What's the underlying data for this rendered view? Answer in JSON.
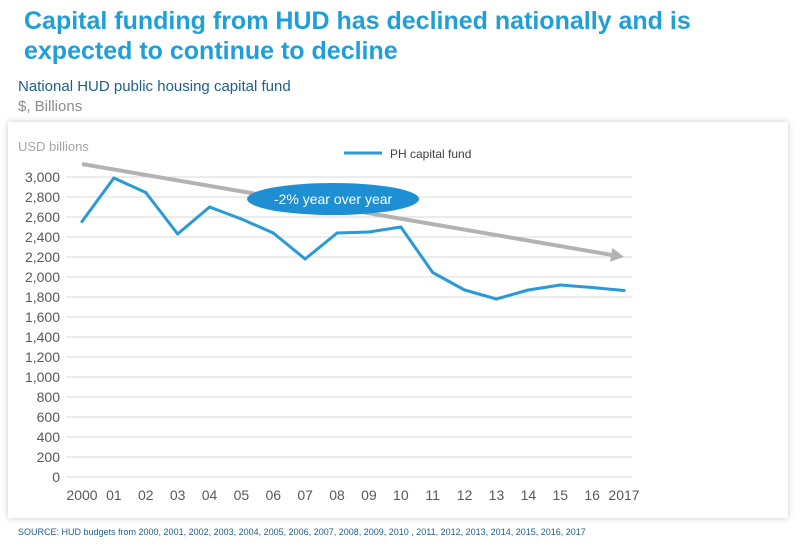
{
  "slide": {
    "title": "Capital funding from HUD has declined nationally and is expected to continue to decline",
    "chart_title": "National HUD public housing capital fund",
    "units": "$, Billions",
    "source": "SOURCE: HUD budgets from 2000, 2001, 2002, 2003, 2004, 2005, 2006, 2007, 2008, 2009, 2010 , 2011, 2012, 2013, 2014, 2015, 2016, 2017"
  },
  "colors": {
    "title": "#1f9fd8",
    "series": "#2a9ad6",
    "trend_arrow": "#b3b3b3",
    "callout_fill": "#1d8fd2",
    "gridline": "#d9d9d9"
  },
  "chart_data": {
    "type": "line",
    "ylabel": "USD billions",
    "categories": [
      "2000",
      "01",
      "02",
      "03",
      "04",
      "05",
      "06",
      "07",
      "08",
      "09",
      "10",
      "11",
      "12",
      "13",
      "14",
      "15",
      "16",
      "2017"
    ],
    "series": [
      {
        "name": "PH capital fund",
        "values": [
          2555,
          2990,
          2845,
          2430,
          2700,
          2580,
          2440,
          2180,
          2440,
          2450,
          2500,
          2045,
          1870,
          1780,
          1870,
          1920,
          1895,
          1865
        ]
      }
    ],
    "ylim": [
      0,
      3000
    ],
    "yticks": [
      0,
      200,
      400,
      600,
      800,
      1000,
      1200,
      1400,
      1600,
      1800,
      2000,
      2200,
      2400,
      2600,
      2800,
      3000
    ],
    "ytick_labels": [
      "0",
      "200",
      "400",
      "600",
      "800",
      "1,000",
      "1,200",
      "1,400",
      "1,600",
      "1,800",
      "2,000",
      "2,200",
      "2,400",
      "2,600",
      "2,800",
      "3,000"
    ],
    "legend": {
      "label": "PH capital fund",
      "position": "top-center"
    },
    "grid": true,
    "annotations": [
      {
        "type": "trend-arrow",
        "start": {
          "x": "2000",
          "y": 3130
        },
        "end": {
          "x": "2017",
          "y": 2200
        }
      },
      {
        "type": "callout",
        "text": "-2% year over year",
        "at": {
          "x": "08",
          "y": 2780
        }
      }
    ]
  }
}
